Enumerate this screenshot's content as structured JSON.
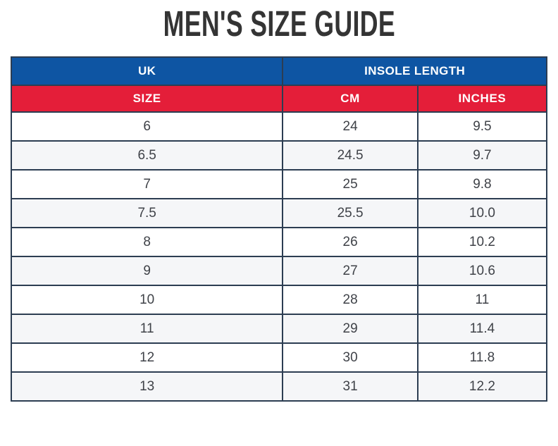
{
  "page": {
    "title": "MEN'S SIZE GUIDE"
  },
  "table": {
    "top_header": {
      "uk": "UK",
      "insole_length": "INSOLE LENGTH"
    },
    "sub_header": {
      "size": "SIZE",
      "cm": "CM",
      "inches": "INCHES"
    },
    "rows": [
      {
        "uk": "6",
        "cm": "24",
        "inches": "9.5"
      },
      {
        "uk": "6.5",
        "cm": "24.5",
        "inches": "9.7"
      },
      {
        "uk": "7",
        "cm": "25",
        "inches": "9.8"
      },
      {
        "uk": "7.5",
        "cm": "25.5",
        "inches": "10.0"
      },
      {
        "uk": "8",
        "cm": "26",
        "inches": "10.2"
      },
      {
        "uk": "9",
        "cm": "27",
        "inches": "10.6"
      },
      {
        "uk": "10",
        "cm": "28",
        "inches": "11"
      },
      {
        "uk": "11",
        "cm": "29",
        "inches": "11.4"
      },
      {
        "uk": "12",
        "cm": "30",
        "inches": "11.8"
      },
      {
        "uk": "13",
        "cm": "31",
        "inches": "12.2"
      }
    ]
  },
  "colors": {
    "header_blue": "#0E55A3",
    "header_red": "#E41E39",
    "border": "#2C3D52",
    "alt_row": "#F5F6F8",
    "text": "#3F4248",
    "title": "#343434"
  },
  "chart_data": {
    "type": "table",
    "title": "MEN'S SIZE GUIDE",
    "columns": [
      "UK SIZE",
      "INSOLE LENGTH CM",
      "INSOLE LENGTH INCHES"
    ],
    "rows": [
      [
        "6",
        "24",
        "9.5"
      ],
      [
        "6.5",
        "24.5",
        "9.7"
      ],
      [
        "7",
        "25",
        "9.8"
      ],
      [
        "7.5",
        "25.5",
        "10.0"
      ],
      [
        "8",
        "26",
        "10.2"
      ],
      [
        "9",
        "27",
        "10.6"
      ],
      [
        "10",
        "28",
        "11"
      ],
      [
        "11",
        "29",
        "11.4"
      ],
      [
        "12",
        "30",
        "11.8"
      ],
      [
        "13",
        "31",
        "12.2"
      ]
    ]
  }
}
